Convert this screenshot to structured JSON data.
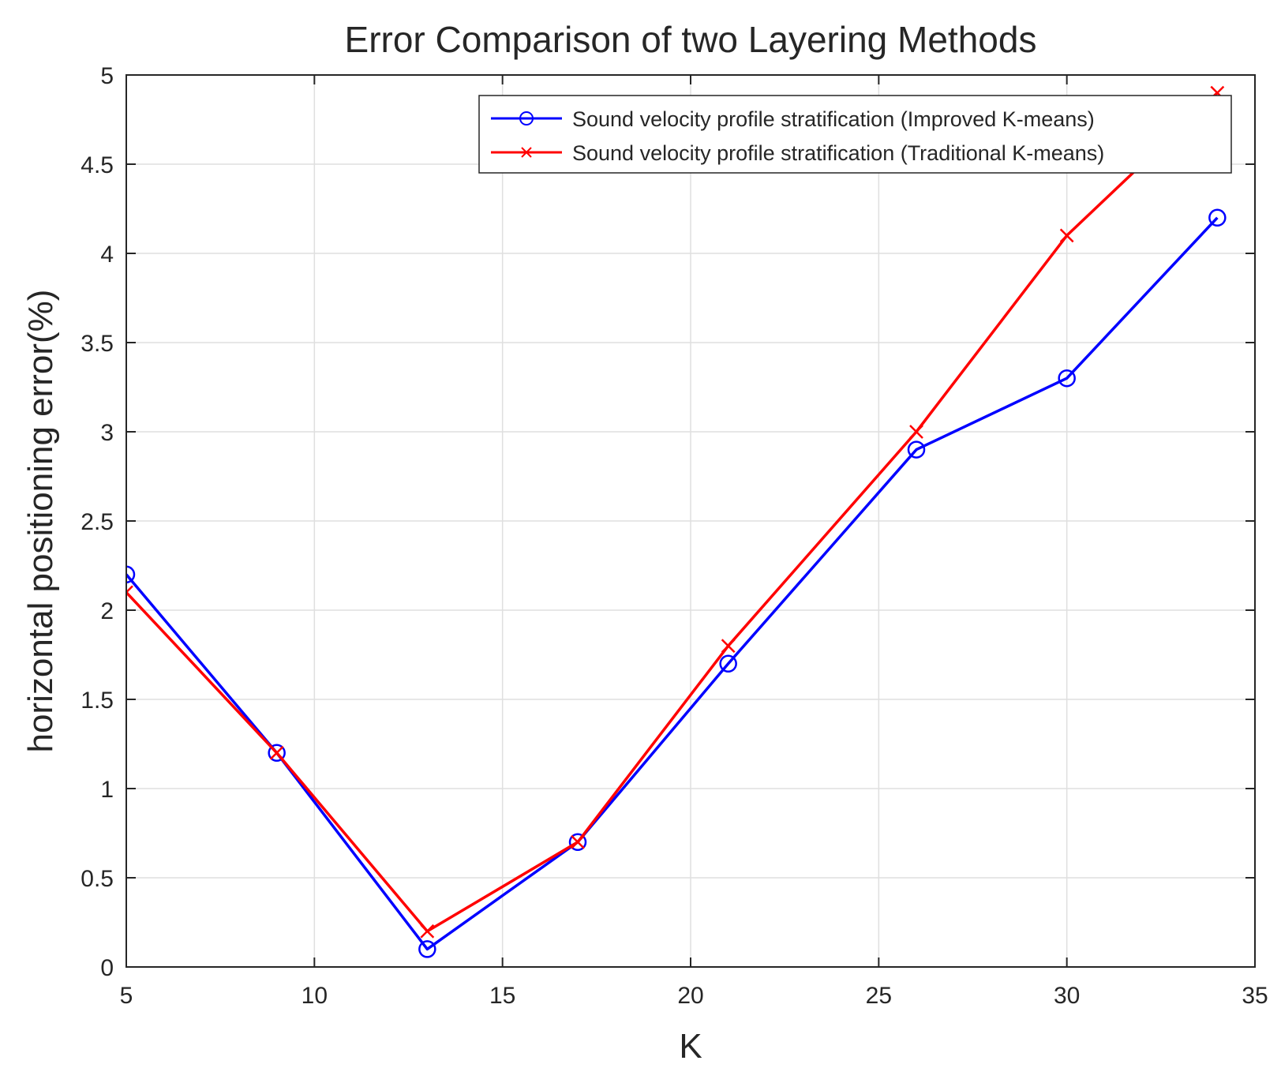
{
  "chart_data": {
    "type": "line",
    "title": "Error Comparison of two Layering Methods",
    "xlabel": "K",
    "ylabel": "horizontal positioning error(%)",
    "xlim": [
      5,
      35
    ],
    "ylim": [
      0,
      5
    ],
    "xticks": [
      5,
      10,
      15,
      20,
      25,
      30,
      35
    ],
    "yticks": [
      0,
      0.5,
      1,
      1.5,
      2,
      2.5,
      3,
      3.5,
      4,
      4.5,
      5
    ],
    "grid": true,
    "legend_position": "top-right",
    "x": [
      5,
      9,
      13,
      17,
      21,
      26,
      30,
      34
    ],
    "series": [
      {
        "name": "Sound velocity profile stratification (Improved K-means)",
        "color": "#0000ff",
        "marker": "circle",
        "values": [
          2.2,
          1.2,
          0.1,
          0.7,
          1.7,
          2.9,
          3.3,
          4.2
        ]
      },
      {
        "name": "Sound velocity profile stratification (Traditional K-means)",
        "color": "#ff0000",
        "marker": "x",
        "values": [
          2.1,
          1.2,
          0.2,
          0.7,
          1.8,
          3.0,
          4.1,
          4.9
        ]
      }
    ]
  }
}
